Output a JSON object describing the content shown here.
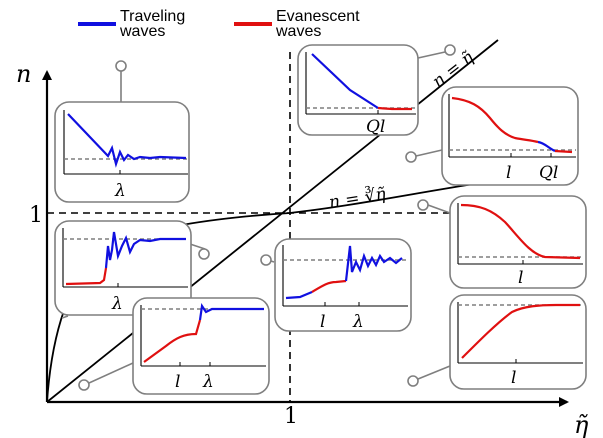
{
  "legend": {
    "traveling": {
      "label": "Traveling\nwaves",
      "color": "#1010e0"
    },
    "evanescent": {
      "label": "Evanescent\nwaves",
      "color": "#e01010"
    }
  },
  "axes": {
    "y_label": "n",
    "x_label": "η̃",
    "y_tick": "1",
    "x_tick": "1"
  },
  "curves": {
    "linear_label": "n = η̃",
    "cuberoot_label": "n = ∛η̃"
  },
  "panels": {
    "p1": {
      "labels": [
        "λ"
      ]
    },
    "p2": {
      "labels": [
        "Ql"
      ]
    },
    "p3": {
      "labels": [
        "l",
        "Ql"
      ]
    },
    "p4": {
      "labels": [
        "λ"
      ]
    },
    "p5": {
      "labels": [
        "l",
        "λ"
      ]
    },
    "p6": {
      "labels": [
        "l"
      ]
    },
    "p7": {
      "labels": [
        "l",
        "λ"
      ]
    },
    "p8": {
      "labels": [
        "l"
      ]
    }
  },
  "colors": {
    "traveling": "#1010e0",
    "evanescent": "#e01010",
    "panel_border": "#7f7f7f"
  }
}
